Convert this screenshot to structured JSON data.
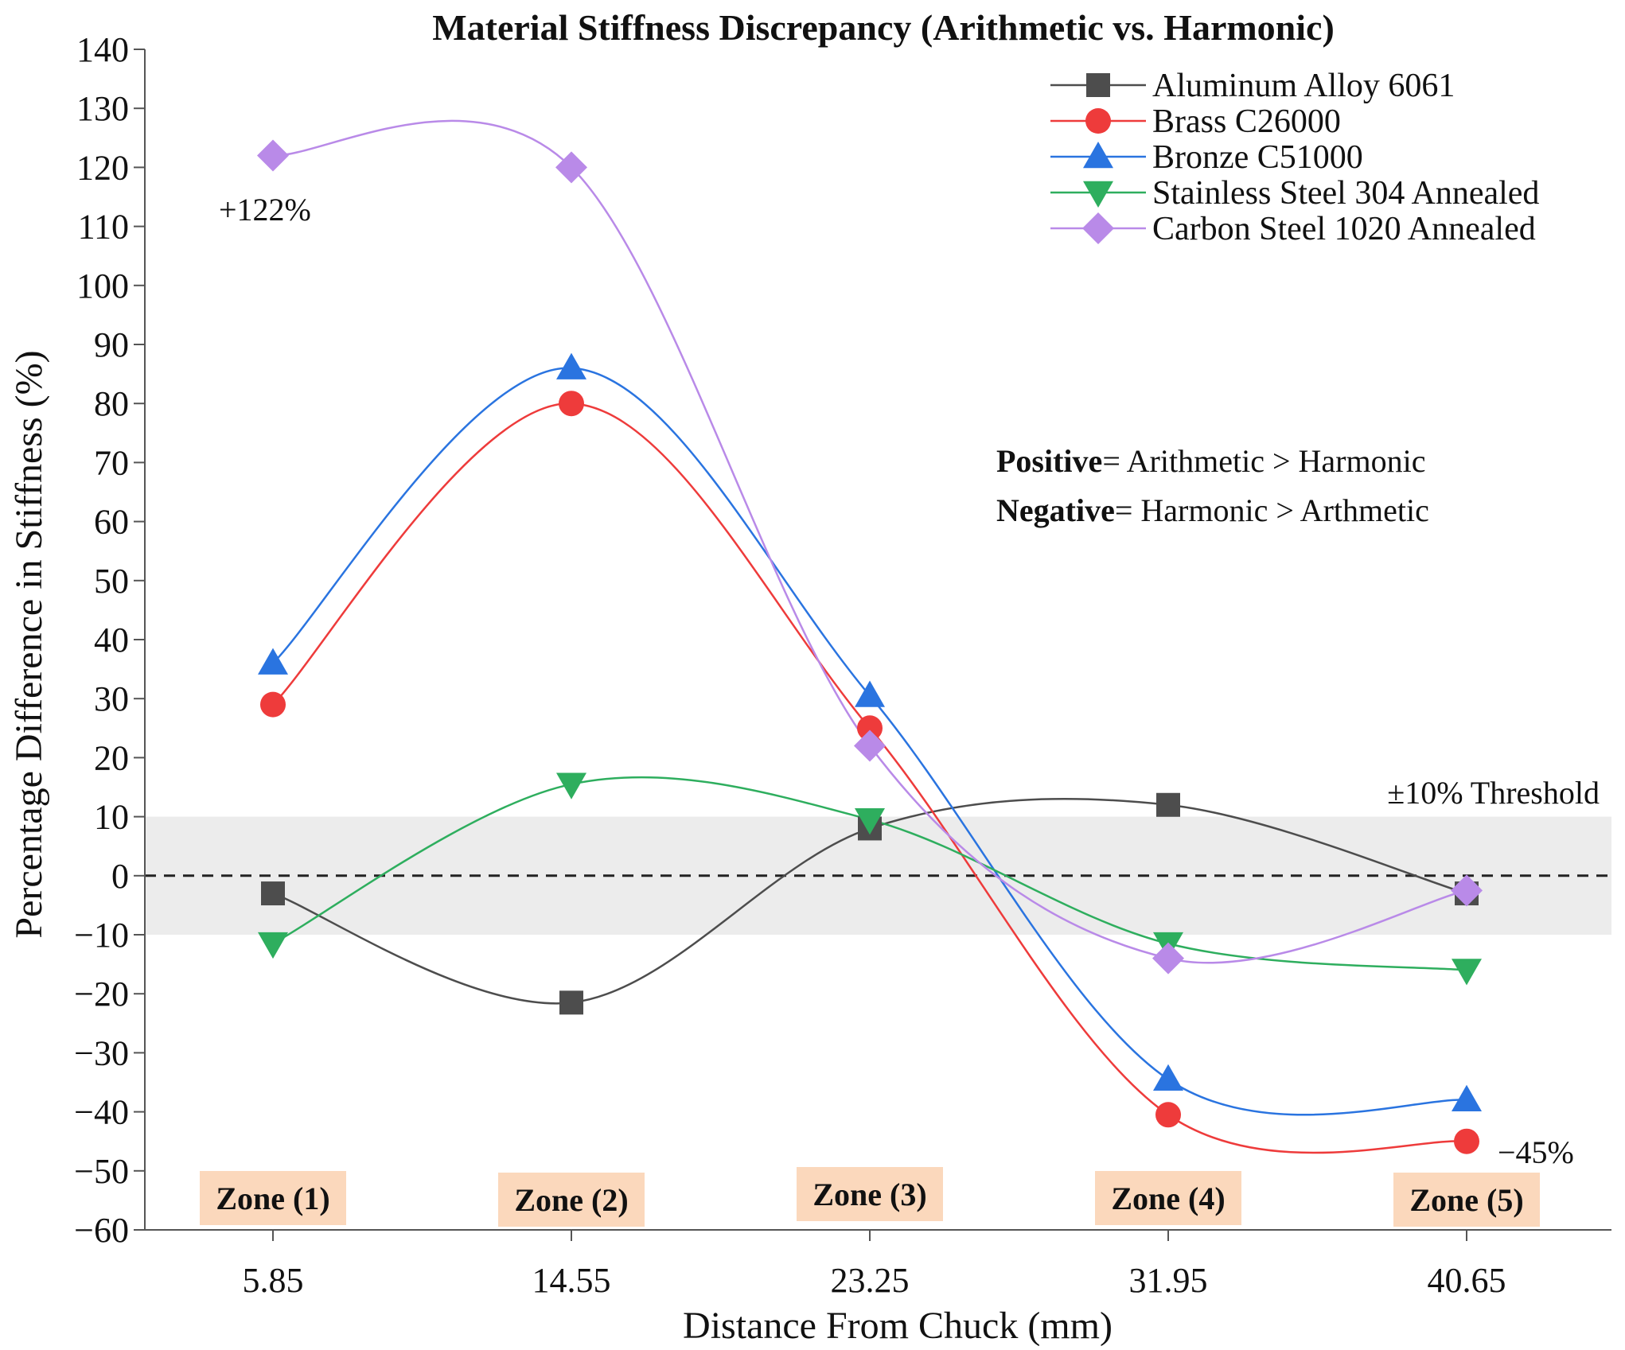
{
  "chart_data": {
    "type": "line",
    "title": "Material Stiffness Discrepancy (Arithmetic vs. Harmonic)",
    "xlabel": "Distance From Chuck (mm)",
    "ylabel": "Percentage Difference in Stiffness (%)",
    "ylim": [
      -60,
      140
    ],
    "yticks": [
      140,
      130,
      120,
      110,
      100,
      90,
      80,
      70,
      60,
      50,
      40,
      30,
      20,
      10,
      0,
      -10,
      -20,
      -30,
      -40,
      -50,
      -60
    ],
    "ytick_labels": [
      "140",
      "130",
      "120",
      "110",
      "100",
      "90",
      "80",
      "70",
      "60",
      "50",
      "40",
      "30",
      "20",
      "10",
      "0",
      "−10",
      "−20",
      "−30",
      "−40",
      "−50",
      "−60"
    ],
    "categories": [
      "5.85",
      "14.55",
      "23.25",
      "31.95",
      "40.65"
    ],
    "series": [
      {
        "name": "Aluminum Alloy 6061",
        "color": "#4d4d4d",
        "marker": "square",
        "values": [
          -3,
          -21.5,
          8,
          12,
          -3
        ]
      },
      {
        "name": "Brass C26000",
        "color": "#ee3b3b",
        "marker": "circle",
        "values": [
          29,
          80,
          25,
          -40.5,
          -45
        ]
      },
      {
        "name": "Bronze C51000",
        "color": "#2a74e0",
        "marker": "triangle-up",
        "values": [
          36,
          86,
          30.5,
          -34.5,
          -38
        ]
      },
      {
        "name": "Stainless Steel 304 Annealed",
        "color": "#2eae5e",
        "marker": "triangle-down",
        "values": [
          -11.5,
          15.5,
          9.5,
          -11.5,
          -16
        ]
      },
      {
        "name": "Carbon Steel 1020 Annealed",
        "color": "#b98ae8",
        "marker": "diamond",
        "values": [
          122,
          120,
          22,
          -14,
          -2.5
        ]
      }
    ],
    "threshold_band": [
      -10,
      10
    ],
    "threshold_label": "±10% Threshold",
    "zero_line": 0,
    "zones": [
      "Zone (1)",
      "Zone (2)",
      "Zone (3)",
      "Zone (4)",
      "Zone (5)"
    ],
    "annotations": {
      "max_label": "+122%",
      "min_label": "−45%"
    },
    "notes": {
      "positive_bold": "Positive",
      "positive_text": "= Arithmetic > Harmonic",
      "negative_bold": "Negative",
      "negative_text": "= Harmonic > Arthmetic"
    },
    "legend_position": "top-right",
    "colors": {
      "zone_fill": "#fbd8bc",
      "band_fill": "#ececec"
    }
  }
}
